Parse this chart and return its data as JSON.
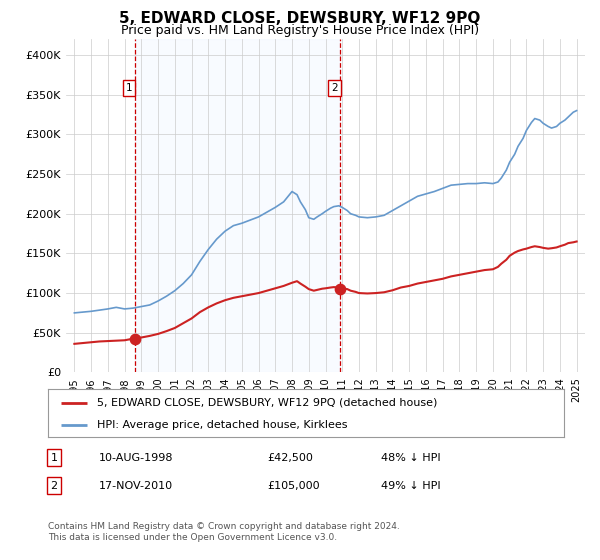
{
  "title": "5, EDWARD CLOSE, DEWSBURY, WF12 9PQ",
  "subtitle": "Price paid vs. HM Land Registry's House Price Index (HPI)",
  "legend_line1": "5, EDWARD CLOSE, DEWSBURY, WF12 9PQ (detached house)",
  "legend_line2": "HPI: Average price, detached house, Kirklees",
  "footnote1": "Contains HM Land Registry data © Crown copyright and database right 2024.",
  "footnote2": "This data is licensed under the Open Government Licence v3.0.",
  "sale1_date": "10-AUG-1998",
  "sale1_price": 42500,
  "sale1_label": "48% ↓ HPI",
  "sale2_date": "17-NOV-2010",
  "sale2_price": 105000,
  "sale2_label": "49% ↓ HPI",
  "sale1_x": 1998.61,
  "sale2_x": 2010.88,
  "hpi_color": "#6699cc",
  "price_color": "#cc2222",
  "vline_color": "#cc0000",
  "shade_color": "#ddeeff",
  "ylim_max": 420000,
  "xlim_min": 1994.5,
  "xlim_max": 2025.5,
  "hpi_data": [
    [
      1995.0,
      75000
    ],
    [
      1995.5,
      76000
    ],
    [
      1996.0,
      77000
    ],
    [
      1996.5,
      78500
    ],
    [
      1997.0,
      80000
    ],
    [
      1997.5,
      82000
    ],
    [
      1998.0,
      80000
    ],
    [
      1998.5,
      81000
    ],
    [
      1999.0,
      83000
    ],
    [
      1999.5,
      85000
    ],
    [
      2000.0,
      90000
    ],
    [
      2000.5,
      96000
    ],
    [
      2001.0,
      103000
    ],
    [
      2001.5,
      112000
    ],
    [
      2002.0,
      123000
    ],
    [
      2002.5,
      140000
    ],
    [
      2003.0,
      155000
    ],
    [
      2003.5,
      168000
    ],
    [
      2004.0,
      178000
    ],
    [
      2004.5,
      185000
    ],
    [
      2005.0,
      188000
    ],
    [
      2005.5,
      192000
    ],
    [
      2006.0,
      196000
    ],
    [
      2006.5,
      202000
    ],
    [
      2007.0,
      208000
    ],
    [
      2007.5,
      215000
    ],
    [
      2008.0,
      228000
    ],
    [
      2008.3,
      224000
    ],
    [
      2008.5,
      215000
    ],
    [
      2008.8,
      205000
    ],
    [
      2009.0,
      195000
    ],
    [
      2009.3,
      193000
    ],
    [
      2009.5,
      196000
    ],
    [
      2009.8,
      200000
    ],
    [
      2010.0,
      203000
    ],
    [
      2010.3,
      207000
    ],
    [
      2010.5,
      209000
    ],
    [
      2010.8,
      210000
    ],
    [
      2011.0,
      208000
    ],
    [
      2011.3,
      204000
    ],
    [
      2011.5,
      200000
    ],
    [
      2011.8,
      198000
    ],
    [
      2012.0,
      196000
    ],
    [
      2012.5,
      195000
    ],
    [
      2013.0,
      196000
    ],
    [
      2013.5,
      198000
    ],
    [
      2014.0,
      204000
    ],
    [
      2014.5,
      210000
    ],
    [
      2015.0,
      216000
    ],
    [
      2015.5,
      222000
    ],
    [
      2016.0,
      225000
    ],
    [
      2016.5,
      228000
    ],
    [
      2017.0,
      232000
    ],
    [
      2017.5,
      236000
    ],
    [
      2018.0,
      237000
    ],
    [
      2018.5,
      238000
    ],
    [
      2019.0,
      238000
    ],
    [
      2019.5,
      239000
    ],
    [
      2020.0,
      238000
    ],
    [
      2020.3,
      240000
    ],
    [
      2020.5,
      245000
    ],
    [
      2020.8,
      255000
    ],
    [
      2021.0,
      265000
    ],
    [
      2021.3,
      275000
    ],
    [
      2021.5,
      285000
    ],
    [
      2021.8,
      295000
    ],
    [
      2022.0,
      305000
    ],
    [
      2022.3,
      315000
    ],
    [
      2022.5,
      320000
    ],
    [
      2022.8,
      318000
    ],
    [
      2023.0,
      314000
    ],
    [
      2023.3,
      310000
    ],
    [
      2023.5,
      308000
    ],
    [
      2023.8,
      310000
    ],
    [
      2024.0,
      314000
    ],
    [
      2024.3,
      318000
    ],
    [
      2024.5,
      322000
    ],
    [
      2024.8,
      328000
    ],
    [
      2025.0,
      330000
    ]
  ],
  "price_data": [
    [
      1995.0,
      36000
    ],
    [
      1995.5,
      37000
    ],
    [
      1996.0,
      38000
    ],
    [
      1996.5,
      39000
    ],
    [
      1997.0,
      39500
    ],
    [
      1997.5,
      40000
    ],
    [
      1998.0,
      40500
    ],
    [
      1998.5,
      42500
    ],
    [
      1999.0,
      44000
    ],
    [
      1999.5,
      46000
    ],
    [
      2000.0,
      48500
    ],
    [
      2000.5,
      52000
    ],
    [
      2001.0,
      56000
    ],
    [
      2001.5,
      62000
    ],
    [
      2002.0,
      68000
    ],
    [
      2002.5,
      76000
    ],
    [
      2003.0,
      82000
    ],
    [
      2003.5,
      87000
    ],
    [
      2004.0,
      91000
    ],
    [
      2004.5,
      94000
    ],
    [
      2005.0,
      96000
    ],
    [
      2005.5,
      98000
    ],
    [
      2006.0,
      100000
    ],
    [
      2006.5,
      103000
    ],
    [
      2007.0,
      106000
    ],
    [
      2007.5,
      109000
    ],
    [
      2008.0,
      113000
    ],
    [
      2008.3,
      115000
    ],
    [
      2008.5,
      112000
    ],
    [
      2008.8,
      108000
    ],
    [
      2009.0,
      105000
    ],
    [
      2009.3,
      103000
    ],
    [
      2009.5,
      104000
    ],
    [
      2009.8,
      105500
    ],
    [
      2010.0,
      106000
    ],
    [
      2010.3,
      107000
    ],
    [
      2010.5,
      107500
    ],
    [
      2010.8,
      107000
    ],
    [
      2011.0,
      106000
    ],
    [
      2011.3,
      105000
    ],
    [
      2011.5,
      103000
    ],
    [
      2011.8,
      101500
    ],
    [
      2012.0,
      100000
    ],
    [
      2012.5,
      99500
    ],
    [
      2013.0,
      100000
    ],
    [
      2013.5,
      101000
    ],
    [
      2014.0,
      103500
    ],
    [
      2014.5,
      107000
    ],
    [
      2015.0,
      109000
    ],
    [
      2015.5,
      112000
    ],
    [
      2016.0,
      114000
    ],
    [
      2016.5,
      116000
    ],
    [
      2017.0,
      118000
    ],
    [
      2017.5,
      121000
    ],
    [
      2018.0,
      123000
    ],
    [
      2018.5,
      125000
    ],
    [
      2019.0,
      127000
    ],
    [
      2019.5,
      129000
    ],
    [
      2020.0,
      130000
    ],
    [
      2020.3,
      133000
    ],
    [
      2020.5,
      137000
    ],
    [
      2020.8,
      142000
    ],
    [
      2021.0,
      147000
    ],
    [
      2021.3,
      151000
    ],
    [
      2021.5,
      153000
    ],
    [
      2021.8,
      155000
    ],
    [
      2022.0,
      156000
    ],
    [
      2022.3,
      158000
    ],
    [
      2022.5,
      159000
    ],
    [
      2022.8,
      158000
    ],
    [
      2023.0,
      157000
    ],
    [
      2023.3,
      156000
    ],
    [
      2023.5,
      156500
    ],
    [
      2023.8,
      157500
    ],
    [
      2024.0,
      159000
    ],
    [
      2024.3,
      161000
    ],
    [
      2024.5,
      163000
    ],
    [
      2024.8,
      164000
    ],
    [
      2025.0,
      165000
    ]
  ]
}
